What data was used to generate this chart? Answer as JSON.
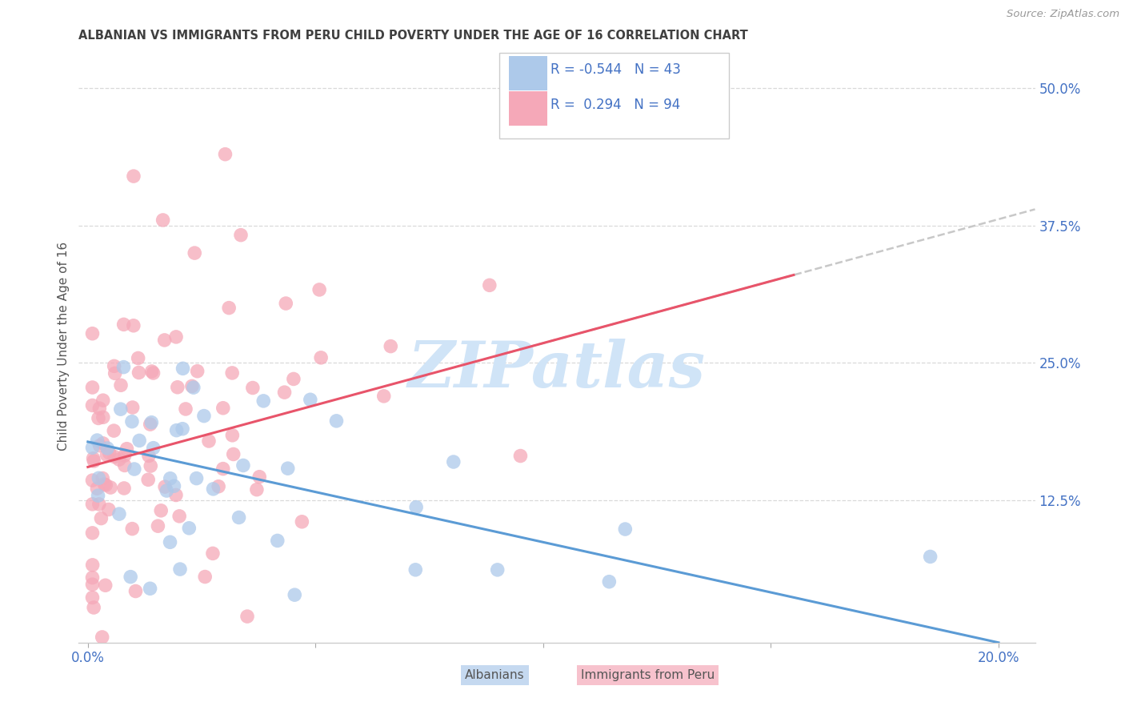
{
  "title": "ALBANIAN VS IMMIGRANTS FROM PERU CHILD POVERTY UNDER THE AGE OF 16 CORRELATION CHART",
  "source": "Source: ZipAtlas.com",
  "ylabel": "Child Poverty Under the Age of 16",
  "x_tick_labels": [
    "0.0%",
    "",
    "",
    "",
    "20.0%"
  ],
  "x_tick_values": [
    0.0,
    0.05,
    0.1,
    0.15,
    0.2
  ],
  "y_tick_labels": [
    "12.5%",
    "25.0%",
    "37.5%",
    "50.0%"
  ],
  "y_tick_values": [
    0.125,
    0.25,
    0.375,
    0.5
  ],
  "y_min": -0.005,
  "y_max": 0.535,
  "x_min": -0.002,
  "x_max": 0.208,
  "color_albanian": "#adc9ea",
  "color_peru": "#f5a8b8",
  "color_line_albanian": "#5b9bd5",
  "color_line_peru": "#e8546a",
  "color_dashed_line": "#c8c8c8",
  "color_axis_labels": "#4472c4",
  "color_title": "#404040",
  "watermark_color": "#d0e4f7",
  "background_color": "#ffffff",
  "grid_color": "#d0d0d0",
  "alb_line_x0": 0.0,
  "alb_line_y0": 0.178,
  "alb_line_x1": 0.2,
  "alb_line_y1": -0.005,
  "peru_line_x0": 0.0,
  "peru_line_y0": 0.155,
  "peru_line_x1": 0.155,
  "peru_line_y1": 0.33,
  "dash_line_x0": 0.09,
  "dash_line_x1": 0.208,
  "legend_R0": "R = -0.544",
  "legend_N0": "N = 43",
  "legend_R1": "R =  0.294",
  "legend_N1": "N = 94",
  "bottom_legend_label0": "Albanians",
  "bottom_legend_label1": "Immigrants from Peru"
}
